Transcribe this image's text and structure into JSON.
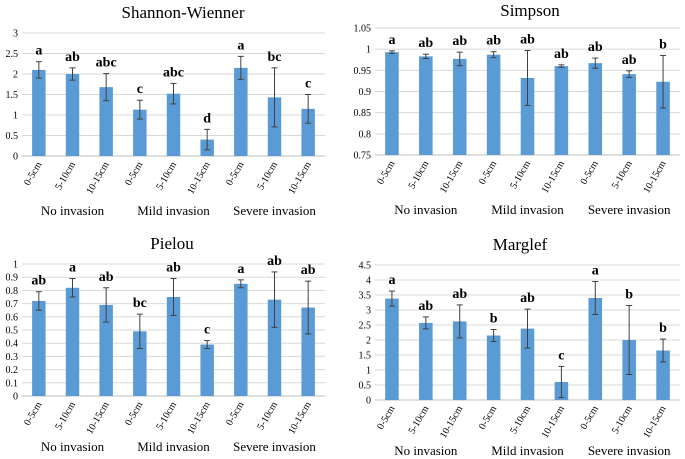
{
  "figure": {
    "bar_color": "#5B9BD5",
    "grid_color": "#D9D9D9",
    "axis_color": "#BFBFBF",
    "error_color": "#404040",
    "text_color": "#000000"
  },
  "chart_data": [
    {
      "type": "bar",
      "title": "Shannon-Wienner",
      "categories": [
        "0-5cm",
        "5-10cm",
        "10-15cm",
        "0-5cm",
        "5-10cm",
        "10-15cm",
        "0-5cm",
        "5-10cm",
        "10-15cm"
      ],
      "groups": [
        "No invasion",
        "Mild invasion",
        "Severe invasion"
      ],
      "values": [
        2.1,
        2.0,
        1.68,
        1.13,
        1.52,
        0.4,
        2.15,
        1.43,
        1.15
      ],
      "errors": [
        0.2,
        0.15,
        0.33,
        0.23,
        0.25,
        0.25,
        0.28,
        0.72,
        0.35
      ],
      "letters": [
        "a",
        "ab",
        "abc",
        "c",
        "abc",
        "d",
        "a",
        "bc",
        "c"
      ],
      "ylim": [
        0,
        3
      ],
      "yticks": [
        "0",
        "0.5",
        "1",
        "1.5",
        "2",
        "2.5",
        "3"
      ],
      "xlabel": "",
      "ylabel": "",
      "grid": true
    },
    {
      "type": "bar",
      "title": "Simpson",
      "categories": [
        "0-5cm",
        "5-10cm",
        "10-15cm",
        "0-5cm",
        "5-10cm",
        "10-15cm",
        "0-5cm",
        "5-10cm",
        "10-15cm"
      ],
      "groups": [
        "No invasion",
        "Mild invasion",
        "Severe invasion"
      ],
      "values": [
        0.993,
        0.983,
        0.977,
        0.987,
        0.932,
        0.96,
        0.967,
        0.941,
        0.923
      ],
      "errors": [
        0.003,
        0.005,
        0.016,
        0.007,
        0.065,
        0.003,
        0.012,
        0.008,
        0.062
      ],
      "letters": [
        "a",
        "ab",
        "ab",
        "ab",
        "ab",
        "ab",
        "ab",
        "ab",
        "b"
      ],
      "ylim": [
        0.75,
        1.05
      ],
      "yticks": [
        "0.75",
        "0.8",
        "0.85",
        "0.9",
        "0.95",
        "1",
        "1.05"
      ],
      "xlabel": "",
      "ylabel": "",
      "grid": true
    },
    {
      "type": "bar",
      "title": "Pielou",
      "categories": [
        "0-5cm",
        "5-10cm",
        "10-15cm",
        "0-5cm",
        "5-10cm",
        "10-15cm",
        "0-5cm",
        "5-10cm",
        "10-15cm"
      ],
      "groups": [
        "No invasion",
        "Mild invasion",
        "Severe invasion"
      ],
      "values": [
        0.72,
        0.82,
        0.69,
        0.49,
        0.75,
        0.39,
        0.85,
        0.73,
        0.67
      ],
      "errors": [
        0.07,
        0.07,
        0.13,
        0.13,
        0.14,
        0.03,
        0.03,
        0.21,
        0.2
      ],
      "letters": [
        "ab",
        "a",
        "ab",
        "bc",
        "ab",
        "c",
        "a",
        "ab",
        "ab"
      ],
      "ylim": [
        0,
        1
      ],
      "yticks": [
        "0",
        "0.1",
        "0.2",
        "0.3",
        "0.4",
        "0.5",
        "0.6",
        "0.7",
        "0.8",
        "0.9",
        "1"
      ],
      "xlabel": "",
      "ylabel": "",
      "grid": true
    },
    {
      "type": "bar",
      "title": "Marglef",
      "categories": [
        "0-5cm",
        "5-10cm",
        "10-15cm",
        "0-5cm",
        "5-10cm",
        "10-15cm",
        "0-5cm",
        "5-10cm",
        "10-15cm"
      ],
      "groups": [
        "No invasion",
        "Mild invasion",
        "Severe invasion"
      ],
      "values": [
        3.38,
        2.57,
        2.62,
        2.15,
        2.38,
        0.6,
        3.4,
        2.0,
        1.65
      ],
      "errors": [
        0.25,
        0.2,
        0.55,
        0.2,
        0.65,
        0.52,
        0.55,
        1.15,
        0.38
      ],
      "letters": [
        "a",
        "ab",
        "ab",
        "b",
        "ab",
        "c",
        "a",
        "b",
        "b"
      ],
      "ylim": [
        0,
        4.5
      ],
      "yticks": [
        "0",
        "0.5",
        "1",
        "1.5",
        "2",
        "2.5",
        "3",
        "3.5",
        "4",
        "4.5"
      ],
      "xlabel": "",
      "ylabel": "",
      "grid": true
    }
  ]
}
